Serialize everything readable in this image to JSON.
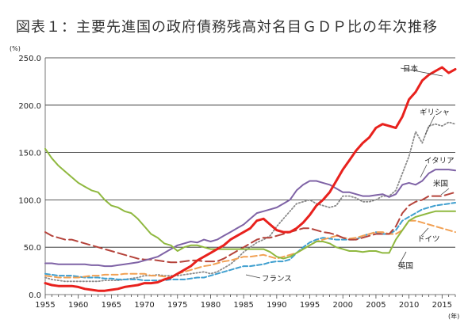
{
  "chart_data": {
    "type": "line",
    "title": "図表１：主要先進国の政府債務残高対名目ＧＤＰ比の年次推移",
    "y_unit_label": "(%)",
    "x_unit_label": "(年)",
    "xlim": [
      1955,
      2017
    ],
    "ylim": [
      0,
      250
    ],
    "x_ticks": [
      "1955",
      "1960",
      "1965",
      "1970",
      "1975",
      "1980",
      "1985",
      "1990",
      "1995",
      "2000",
      "2005",
      "2010",
      "2015"
    ],
    "y_ticks": [
      "0.0",
      "50.0",
      "100.0",
      "150.0",
      "200.0",
      "250.0"
    ],
    "grid": "horizontal",
    "x": [
      1955,
      1956,
      1957,
      1958,
      1959,
      1960,
      1961,
      1962,
      1963,
      1964,
      1965,
      1966,
      1967,
      1968,
      1969,
      1970,
      1971,
      1972,
      1973,
      1974,
      1975,
      1976,
      1977,
      1978,
      1979,
      1980,
      1981,
      1982,
      1983,
      1984,
      1985,
      1986,
      1987,
      1988,
      1989,
      1990,
      1991,
      1992,
      1993,
      1994,
      1995,
      1996,
      1997,
      1998,
      1999,
      2000,
      2001,
      2002,
      2003,
      2004,
      2005,
      2006,
      2007,
      2008,
      2009,
      2010,
      2011,
      2012,
      2013,
      2014,
      2015,
      2016,
      2017
    ],
    "series": [
      {
        "name": "日本",
        "color": "#e8211d",
        "dash": "",
        "width": 3,
        "values": [
          12,
          10,
          9,
          9,
          9,
          8,
          6,
          5,
          4,
          4,
          5,
          6,
          8,
          9,
          10,
          12,
          12,
          13,
          16,
          18,
          22,
          26,
          30,
          36,
          40,
          44,
          48,
          52,
          58,
          62,
          66,
          70,
          78,
          80,
          74,
          68,
          66,
          66,
          70,
          76,
          84,
          94,
          100,
          108,
          120,
          132,
          142,
          152,
          160,
          166,
          176,
          180,
          178,
          176,
          188,
          206,
          214,
          226,
          232,
          236,
          240,
          234,
          238
        ]
      },
      {
        "name": "ギリシャ",
        "color": "#8c8c8c",
        "dash": "1.5,2.5",
        "width": 1.8,
        "values": [
          18,
          16,
          15,
          14,
          14,
          14,
          14,
          14,
          14,
          15,
          15,
          15,
          16,
          17,
          18,
          20,
          20,
          21,
          20,
          20,
          20,
          21,
          22,
          23,
          24,
          22,
          24,
          28,
          32,
          38,
          45,
          50,
          55,
          58,
          62,
          72,
          80,
          88,
          96,
          98,
          100,
          96,
          94,
          92,
          94,
          104,
          104,
          102,
          98,
          98,
          100,
          104,
          104,
          110,
          128,
          146,
          172,
          160,
          178,
          180,
          178,
          182,
          180
        ]
      },
      {
        "name": "イタリア",
        "color": "#7f63a6",
        "dash": "",
        "width": 2,
        "values": [
          33,
          33,
          32,
          32,
          32,
          32,
          32,
          31,
          31,
          30,
          30,
          31,
          32,
          33,
          34,
          36,
          38,
          40,
          44,
          48,
          52,
          54,
          56,
          55,
          58,
          56,
          58,
          62,
          66,
          70,
          74,
          80,
          86,
          88,
          90,
          92,
          96,
          100,
          110,
          116,
          120,
          120,
          118,
          116,
          112,
          108,
          108,
          106,
          104,
          104,
          105,
          106,
          103,
          106,
          116,
          118,
          116,
          120,
          128,
          132,
          132,
          132,
          131
        ]
      },
      {
        "name": "米国",
        "color": "#b5433b",
        "dash": "11,5",
        "width": 2,
        "values": [
          66,
          62,
          60,
          58,
          58,
          56,
          54,
          52,
          50,
          48,
          46,
          44,
          42,
          40,
          38,
          37,
          37,
          36,
          35,
          34,
          34,
          35,
          36,
          36,
          35,
          35,
          35,
          38,
          42,
          46,
          50,
          54,
          58,
          60,
          60,
          62,
          64,
          66,
          68,
          70,
          70,
          68,
          66,
          65,
          63,
          60,
          58,
          58,
          60,
          62,
          64,
          64,
          64,
          72,
          86,
          94,
          98,
          100,
          104,
          104,
          104,
          106,
          108
        ]
      },
      {
        "name": "フランス",
        "color": "#3f9fcf",
        "dash": "6,3",
        "width": 2,
        "values": [
          22,
          21,
          20,
          20,
          20,
          19,
          18,
          18,
          18,
          17,
          17,
          16,
          16,
          16,
          16,
          15,
          15,
          15,
          15,
          16,
          16,
          16,
          17,
          18,
          18,
          20,
          22,
          24,
          26,
          28,
          30,
          30,
          31,
          32,
          34,
          35,
          35,
          37,
          44,
          50,
          55,
          58,
          60,
          59,
          58,
          58,
          58,
          58,
          62,
          64,
          66,
          64,
          64,
          68,
          78,
          82,
          86,
          90,
          92,
          94,
          95,
          96,
          97
        ]
      },
      {
        "name": "英国",
        "color": "#8fb83f",
        "dash": "",
        "width": 2,
        "values": [
          154,
          144,
          136,
          130,
          124,
          118,
          114,
          110,
          108,
          100,
          94,
          92,
          88,
          86,
          80,
          72,
          64,
          60,
          54,
          52,
          46,
          50,
          52,
          52,
          50,
          48,
          48,
          48,
          48,
          48,
          48,
          48,
          48,
          48,
          45,
          40,
          38,
          40,
          44,
          48,
          52,
          56,
          56,
          54,
          50,
          48,
          46,
          46,
          45,
          46,
          46,
          44,
          44,
          58,
          68,
          78,
          82,
          84,
          86,
          88,
          88,
          88,
          88
        ]
      },
      {
        "name": "ドイツ",
        "color": "#f2a154",
        "dash": "8,4",
        "width": 2,
        "values": [
          20,
          19,
          18,
          18,
          18,
          18,
          19,
          20,
          20,
          21,
          21,
          21,
          22,
          22,
          22,
          22,
          20,
          20,
          19,
          18,
          22,
          24,
          26,
          28,
          30,
          31,
          33,
          35,
          36,
          38,
          40,
          40,
          41,
          42,
          40,
          38,
          40,
          42,
          44,
          48,
          52,
          56,
          58,
          60,
          62,
          60,
          59,
          60,
          62,
          64,
          66,
          66,
          64,
          64,
          68,
          78,
          78,
          76,
          74,
          72,
          70,
          68,
          66
        ]
      }
    ]
  }
}
